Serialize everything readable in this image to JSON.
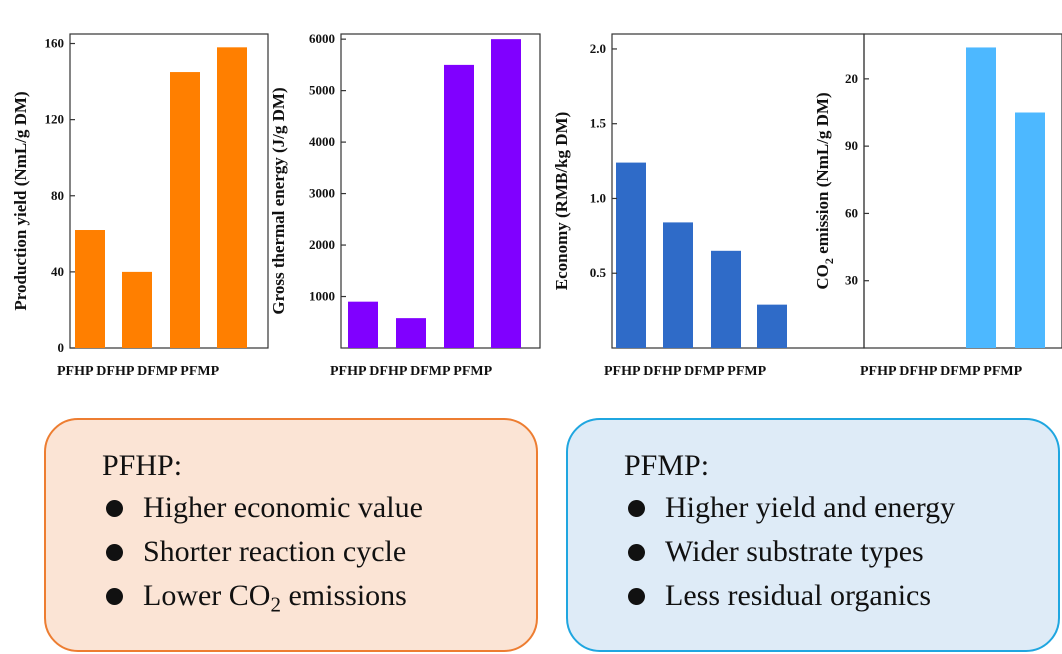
{
  "chart_data": [
    {
      "type": "bar",
      "categories": [
        "PFHP",
        "DFHP",
        "DFMP",
        "PFMP"
      ],
      "values": [
        62,
        40,
        145,
        158
      ],
      "ylabel": "Production yield (NmL/g DM)",
      "ylim": [
        0,
        165
      ],
      "yticks": [
        0,
        40,
        80,
        120,
        160
      ],
      "color": "#ff7f00"
    },
    {
      "type": "bar",
      "categories": [
        "PFHP",
        "DFHP",
        "DFMP",
        "PFMP"
      ],
      "values": [
        900,
        580,
        5500,
        6000
      ],
      "ylabel": "Gross thermal energy (J/g DM)",
      "ylim": [
        0,
        6100
      ],
      "yticks": [
        1000,
        2000,
        3000,
        4000,
        5000,
        6000
      ],
      "color": "#8000ff"
    },
    {
      "type": "bar",
      "categories": [
        "PFHP",
        "DFHP",
        "DFMP",
        "PFMP"
      ],
      "values": [
        1.24,
        0.84,
        0.65,
        0.29
      ],
      "ylabel": "Economy (RMB/kg DM)",
      "ylim": [
        0,
        2.1
      ],
      "yticks": [
        0.5,
        1.0,
        1.5,
        2.0
      ],
      "tick_labels": [
        "0.5",
        "1.0",
        "1.5",
        "2.0"
      ],
      "color": "#2f6bc8"
    },
    {
      "type": "bar",
      "categories": [
        "PFHP",
        "DFHP",
        "DFMP",
        "PFMP"
      ],
      "values": [
        0,
        0,
        134,
        105
      ],
      "ylabel_main": "CO",
      "ylabel_sub": "2",
      "ylabel_rest": " emission (NmL/g DM)",
      "ylim": [
        0,
        140
      ],
      "yticks": [
        30,
        60,
        90,
        20
      ],
      "tick_labels": [
        "30",
        "60",
        "90",
        "20"
      ],
      "color": "#4db8ff"
    }
  ],
  "boxes": [
    {
      "title": "PFHP:",
      "items": [
        {
          "text": "Higher economic value"
        },
        {
          "text": "Shorter reaction cycle"
        },
        {
          "text": "Lower CO",
          "sub": "2",
          "after": " emissions"
        }
      ],
      "fill": "#fbe4d5",
      "border": "#ed7d31"
    },
    {
      "title": "PFMP:",
      "items": [
        {
          "text": "Higher yield and energy"
        },
        {
          "text": "Wider substrate types"
        },
        {
          "text": "Less residual organics"
        }
      ],
      "fill": "#deebf7",
      "border": "#1fa6e0"
    }
  ]
}
